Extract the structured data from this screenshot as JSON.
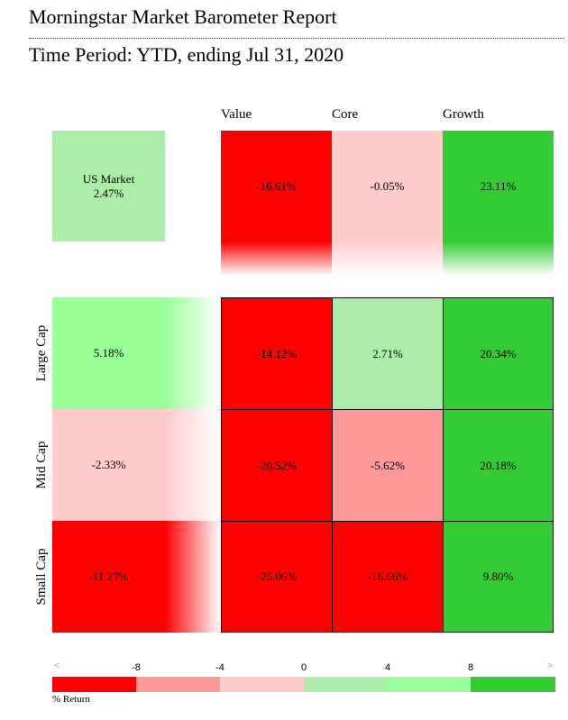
{
  "header": {
    "title": "Morningstar Market Barometer Report",
    "subtitle": "Time Period: YTD, ending Jul 31, 2020"
  },
  "chart_data": {
    "type": "heatmap",
    "columns": [
      "Value",
      "Core",
      "Growth"
    ],
    "rows": [
      "Large Cap",
      "Mid Cap",
      "Small Cap"
    ],
    "market": {
      "label": "US Market",
      "value": "2.47%"
    },
    "column_totals": [
      "-16.61%",
      "-0.05%",
      "23.11%"
    ],
    "row_totals": [
      "5.18%",
      "-2.33%",
      "-11.27%"
    ],
    "cells": [
      [
        "-14.12%",
        "2.71%",
        "20.34%"
      ],
      [
        "-20.52%",
        "-5.62%",
        "20.18%"
      ],
      [
        "-25.06%",
        "-16.66%",
        "9.80%"
      ]
    ],
    "legend": {
      "ticks": [
        "-8",
        "-4",
        "0",
        "4",
        "8"
      ],
      "left_arrow": "<",
      "right_arrow": ">",
      "caption": "% Return",
      "colors": [
        "#ff0000",
        "#ff9999",
        "#ffcccc",
        "#aaeeaa",
        "#99ff99",
        "#33cc33"
      ]
    },
    "colors": {
      "strong_negative": "#ff0000",
      "negative": "#ff9999",
      "slight_negative": "#ffcccc",
      "slight_positive": "#aaeeaa",
      "positive": "#99ff99",
      "strong_positive": "#33cc33"
    }
  }
}
